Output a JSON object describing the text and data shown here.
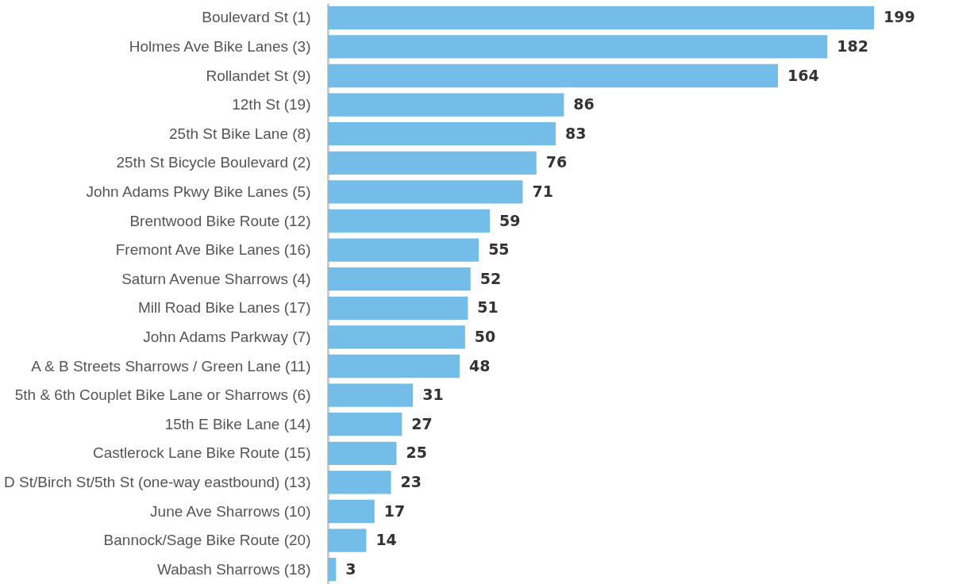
{
  "chart_data": {
    "type": "bar",
    "orientation": "horizontal",
    "categories": [
      "Boulevard St (1)",
      "Holmes Ave Bike Lanes (3)",
      "Rollandet St (9)",
      "12th St (19)",
      "25th St Bike Lane (8)",
      "25th St Bicycle Boulevard (2)",
      "John Adams Pkwy  Bike Lanes (5)",
      "Brentwood Bike Route (12)",
      "Fremont Ave Bike Lanes (16)",
      "Saturn Avenue Sharrows (4)",
      "Mill Road Bike Lanes (17)",
      "John Adams Parkway (7)",
      "A & B Streets Sharrows / Green Lane (11)",
      "5th & 6th Couplet  Bike Lane or Sharrows (6)",
      "15th E Bike Lane (14)",
      "Castlerock Lane Bike Route (15)",
      "D St/Birch St/5th St (one-way eastbound) (13)",
      "June Ave Sharrows (10)",
      "Bannock/Sage Bike Route (20)",
      "Wabash Sharrows (18)"
    ],
    "values": [
      199,
      182,
      164,
      86,
      83,
      76,
      71,
      59,
      55,
      52,
      51,
      50,
      48,
      31,
      27,
      25,
      23,
      17,
      14,
      3
    ],
    "color": "#74bde8",
    "data_labels": true
  }
}
